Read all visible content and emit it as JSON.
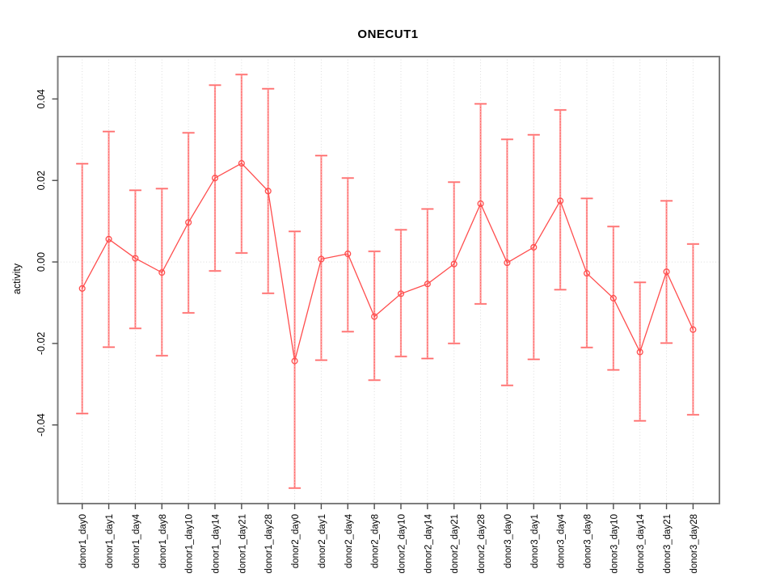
{
  "figure": {
    "title": "ONECUT1",
    "ylabel": "activity"
  },
  "chart_data": {
    "type": "line",
    "title": "ONECUT1",
    "xlabel": "",
    "ylabel": "activity",
    "categories": [
      "donor1_day0",
      "donor1_day1",
      "donor1_day4",
      "donor1_day8",
      "donor1_day10",
      "donor1_day14",
      "donor1_day21",
      "donor1_day28",
      "donor2_day0",
      "donor2_day1",
      "donor2_day4",
      "donor2_day8",
      "donor2_day10",
      "donor2_day14",
      "donor2_day21",
      "donor2_day28",
      "donor3_day0",
      "donor3_day1",
      "donor3_day4",
      "donor3_day8",
      "donor3_day10",
      "donor3_day14",
      "donor3_day21",
      "donor3_day28"
    ],
    "series": [
      {
        "name": "activity",
        "marker": "open-circle",
        "values": [
          -0.0065,
          0.0056,
          0.0009,
          -0.0026,
          0.0097,
          0.0206,
          0.0242,
          0.0174,
          -0.0243,
          0.0007,
          0.002,
          -0.0134,
          -0.0078,
          -0.0054,
          -0.0005,
          0.0143,
          -0.0002,
          0.0036,
          0.015,
          -0.0028,
          -0.0089,
          -0.0221,
          -0.0024,
          -0.0166
        ],
        "error_upper": [
          0.0241,
          0.032,
          0.0176,
          0.018,
          0.0317,
          0.0434,
          0.046,
          0.0425,
          0.0075,
          0.0261,
          0.0206,
          0.0026,
          0.0079,
          0.013,
          0.0196,
          0.0388,
          0.0301,
          0.0312,
          0.0373,
          0.0156,
          0.0087,
          -0.005,
          0.015,
          0.0044
        ],
        "error_lower": [
          -0.0372,
          -0.0209,
          -0.0163,
          -0.023,
          -0.0125,
          -0.0022,
          0.0022,
          -0.0077,
          -0.0555,
          -0.0241,
          -0.0171,
          -0.029,
          -0.0232,
          -0.0237,
          -0.02,
          -0.0103,
          -0.0303,
          -0.0239,
          -0.0068,
          -0.021,
          -0.0265,
          -0.039,
          -0.0199,
          -0.0375
        ]
      }
    ],
    "yticks": [
      0.04,
      0.02,
      0.0,
      -0.02,
      -0.04
    ],
    "ytick_labels": [
      "0.04",
      "0.02",
      "0.00",
      "-0.02",
      "-0.04"
    ],
    "ylim": [
      -0.0593,
      0.0504
    ],
    "grid": {
      "vertical_gridlines": true,
      "horizontal_zero_line": true,
      "style": "dotted"
    },
    "legend": "none",
    "colors": {
      "line": "#ff4d4d",
      "point": "#ff4d4d",
      "error_bar": "#ff9a9a",
      "error_bar_core": "#ff5c5c",
      "grid": "#dcdcdc",
      "axis_box": "#7d7d7d",
      "tick": "#4d4d4d",
      "text": "#000000",
      "background": "#ffffff"
    }
  }
}
